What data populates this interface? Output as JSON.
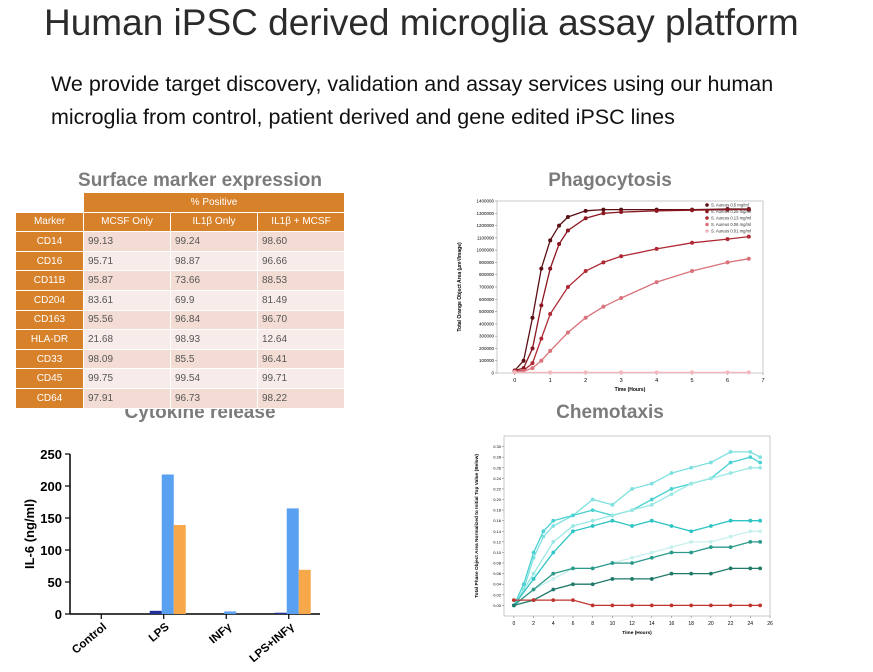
{
  "header": {
    "title": "Human iPSC derived microglia assay platform",
    "subtitle_line1": "We provide target discovery, validation and assay services using our human",
    "subtitle_line2": "microglia from control, patient derived and gene edited iPSC lines"
  },
  "sections": {
    "surface": "Surface marker expression",
    "phagocytosis": "Phagocytosis",
    "cytokine": "Cytokine release",
    "chemotaxis": "Chemotaxis"
  },
  "table": {
    "group_header": "% Positive",
    "columns": [
      "Marker",
      "MCSF Only",
      "IL1β Only",
      "IL1β + MCSF"
    ],
    "rows": [
      [
        "CD14",
        "99.13",
        "99.24",
        "98.60"
      ],
      [
        "CD16",
        "95.71",
        "98.87",
        "96.66"
      ],
      [
        "CD11B",
        "95.87",
        "73.66",
        "88.53"
      ],
      [
        "CD204",
        "83.61",
        "69.9",
        "81.49"
      ],
      [
        "CD163",
        "95.56",
        "96.84",
        "96.70"
      ],
      [
        "HLA-DR",
        "21.68",
        "98.93",
        "12.64"
      ],
      [
        "CD33",
        "98.09",
        "85.5",
        "96.41"
      ],
      [
        "CD45",
        "99.75",
        "99.54",
        "99.71"
      ],
      [
        "CD64",
        "97.91",
        "96.73",
        "98.22"
      ]
    ]
  },
  "colors": {
    "table_header": "#d7812b",
    "bar_dark": "#1f2f9b",
    "bar_blue": "#5aa0f0",
    "bar_orange": "#f7a84a",
    "phago_series": [
      "#5a0f14",
      "#8a1620",
      "#b02a35",
      "#d9727b",
      "#f2b8bd"
    ],
    "chemo_series": [
      "#7fe0e0",
      "#4cd2d2",
      "#9ae8e4",
      "#2ec4c4",
      "#c8f0ee",
      "#2a9a8a",
      "#1f7a6a",
      "#c0342e"
    ]
  },
  "chart_data": [
    {
      "type": "bar",
      "title": "Cytokine release",
      "ylabel": "IL-6 (ng/ml)",
      "categories": [
        "Control",
        "LPS",
        "INFγ",
        "LPS+INFγ"
      ],
      "ylim": [
        0,
        250
      ],
      "yticks": [
        0,
        50,
        100,
        150,
        200,
        250
      ],
      "series": [
        {
          "values": [
            0,
            5,
            0,
            2
          ]
        },
        {
          "values": [
            0,
            218,
            4,
            165
          ]
        },
        {
          "values": [
            0,
            139,
            0,
            69
          ]
        }
      ]
    },
    {
      "type": "line",
      "title": "Phagocytosis",
      "xlabel": "Time (Hours)",
      "ylabel": "Total Orange Object Area (µm²/Image)",
      "xlim": [
        -0.5,
        7
      ],
      "ylim": [
        0,
        1400000
      ],
      "xticks": [
        0,
        1,
        2,
        3,
        4,
        5,
        6,
        7
      ],
      "yticks": [
        0,
        100000,
        200000,
        300000,
        400000,
        500000,
        600000,
        700000,
        800000,
        900000,
        1000000,
        1100000,
        1200000,
        1300000,
        1400000
      ],
      "legend_position": "top-right",
      "series": [
        {
          "name": "S. Aureus 0.5 mg/ml",
          "x": [
            0,
            0.25,
            0.5,
            0.75,
            1,
            1.25,
            1.5,
            2,
            2.5,
            3,
            4,
            5,
            6,
            6.6
          ],
          "y": [
            20000,
            100000,
            450000,
            850000,
            1080000,
            1200000,
            1270000,
            1320000,
            1330000,
            1330000,
            1330000,
            1330000,
            1335000,
            1335000
          ]
        },
        {
          "name": "S. Aureus 0.25 mg/ml",
          "x": [
            0,
            0.25,
            0.5,
            0.75,
            1,
            1.25,
            1.5,
            2,
            2.5,
            3,
            4,
            5,
            6,
            6.6
          ],
          "y": [
            20000,
            40000,
            200000,
            550000,
            850000,
            1050000,
            1160000,
            1260000,
            1300000,
            1310000,
            1320000,
            1325000,
            1330000,
            1330000
          ]
        },
        {
          "name": "S. Aureus 0.13 mg/ml",
          "x": [
            0,
            0.25,
            0.5,
            0.75,
            1,
            1.5,
            2,
            2.5,
            3,
            4,
            5,
            6,
            6.6
          ],
          "y": [
            15000,
            20000,
            80000,
            280000,
            480000,
            700000,
            830000,
            900000,
            950000,
            1010000,
            1060000,
            1090000,
            1110000
          ]
        },
        {
          "name": "S. Aureus 0.06 mg/ml",
          "x": [
            0,
            0.25,
            0.5,
            0.75,
            1,
            1.5,
            2,
            2.5,
            3,
            4,
            5,
            6,
            6.6
          ],
          "y": [
            10000,
            15000,
            40000,
            100000,
            180000,
            330000,
            450000,
            540000,
            610000,
            740000,
            830000,
            900000,
            930000
          ]
        },
        {
          "name": "S. Aureus 0.01 mg/ml",
          "x": [
            0,
            1,
            2,
            3,
            4,
            5,
            6,
            6.6
          ],
          "y": [
            5000,
            5000,
            5000,
            5000,
            5000,
            5000,
            5000,
            5000
          ]
        }
      ]
    },
    {
      "type": "line",
      "title": "Chemotaxis",
      "xlabel": "Time (Hours)",
      "ylabel": "Total Phase Object Area Normalized to Initial Top Value (Below)",
      "xlim": [
        -1,
        26
      ],
      "ylim": [
        -0.02,
        0.32
      ],
      "xticks": [
        0,
        2,
        4,
        6,
        8,
        10,
        12,
        14,
        16,
        18,
        20,
        22,
        24,
        26
      ],
      "yticks": [
        0,
        0.02,
        0.04,
        0.06,
        0.08,
        0.1,
        0.12,
        0.14,
        0.16,
        0.18,
        0.2,
        0.22,
        0.24,
        0.26,
        0.28,
        0.3
      ],
      "series": [
        {
          "x": [
            0,
            1,
            2,
            3,
            4,
            6,
            8,
            10,
            12,
            14,
            16,
            18,
            20,
            22,
            24,
            25
          ],
          "y": [
            0,
            0.03,
            0.09,
            0.13,
            0.15,
            0.17,
            0.2,
            0.19,
            0.22,
            0.23,
            0.25,
            0.26,
            0.27,
            0.29,
            0.29,
            0.28
          ]
        },
        {
          "x": [
            0,
            1,
            2,
            3,
            4,
            6,
            8,
            10,
            12,
            14,
            16,
            18,
            20,
            22,
            24,
            25
          ],
          "y": [
            0,
            0.04,
            0.1,
            0.14,
            0.16,
            0.17,
            0.18,
            0.17,
            0.18,
            0.2,
            0.22,
            0.23,
            0.24,
            0.27,
            0.28,
            0.27
          ]
        },
        {
          "x": [
            0,
            2,
            4,
            6,
            8,
            10,
            12,
            14,
            16,
            18,
            20,
            22,
            24,
            25
          ],
          "y": [
            0,
            0.06,
            0.12,
            0.15,
            0.16,
            0.17,
            0.18,
            0.19,
            0.21,
            0.23,
            0.24,
            0.25,
            0.26,
            0.26
          ]
        },
        {
          "x": [
            0,
            2,
            4,
            6,
            8,
            10,
            12,
            14,
            16,
            18,
            20,
            22,
            24,
            25
          ],
          "y": [
            0,
            0.05,
            0.1,
            0.14,
            0.15,
            0.16,
            0.15,
            0.16,
            0.15,
            0.14,
            0.15,
            0.16,
            0.16,
            0.16
          ]
        },
        {
          "x": [
            0,
            2,
            4,
            6,
            8,
            10,
            12,
            14,
            16,
            18,
            20,
            22,
            24,
            25
          ],
          "y": [
            0,
            0.03,
            0.05,
            0.07,
            0.07,
            0.08,
            0.09,
            0.1,
            0.11,
            0.12,
            0.12,
            0.13,
            0.14,
            0.14
          ]
        },
        {
          "x": [
            0,
            2,
            4,
            6,
            8,
            10,
            12,
            14,
            16,
            18,
            20,
            22,
            24,
            25
          ],
          "y": [
            0,
            0.03,
            0.06,
            0.07,
            0.07,
            0.08,
            0.08,
            0.09,
            0.1,
            0.1,
            0.11,
            0.11,
            0.12,
            0.12
          ]
        },
        {
          "x": [
            0,
            2,
            4,
            6,
            8,
            10,
            12,
            14,
            16,
            18,
            20,
            22,
            24,
            25
          ],
          "y": [
            0,
            0.01,
            0.03,
            0.04,
            0.04,
            0.05,
            0.05,
            0.05,
            0.06,
            0.06,
            0.06,
            0.07,
            0.07,
            0.07
          ]
        },
        {
          "x": [
            0,
            2,
            4,
            6,
            8,
            10,
            12,
            14,
            16,
            18,
            20,
            22,
            24,
            25
          ],
          "y": [
            0.01,
            0.01,
            0.01,
            0.01,
            0,
            0,
            0,
            0,
            0,
            0,
            0,
            0,
            0,
            0
          ]
        }
      ]
    }
  ]
}
